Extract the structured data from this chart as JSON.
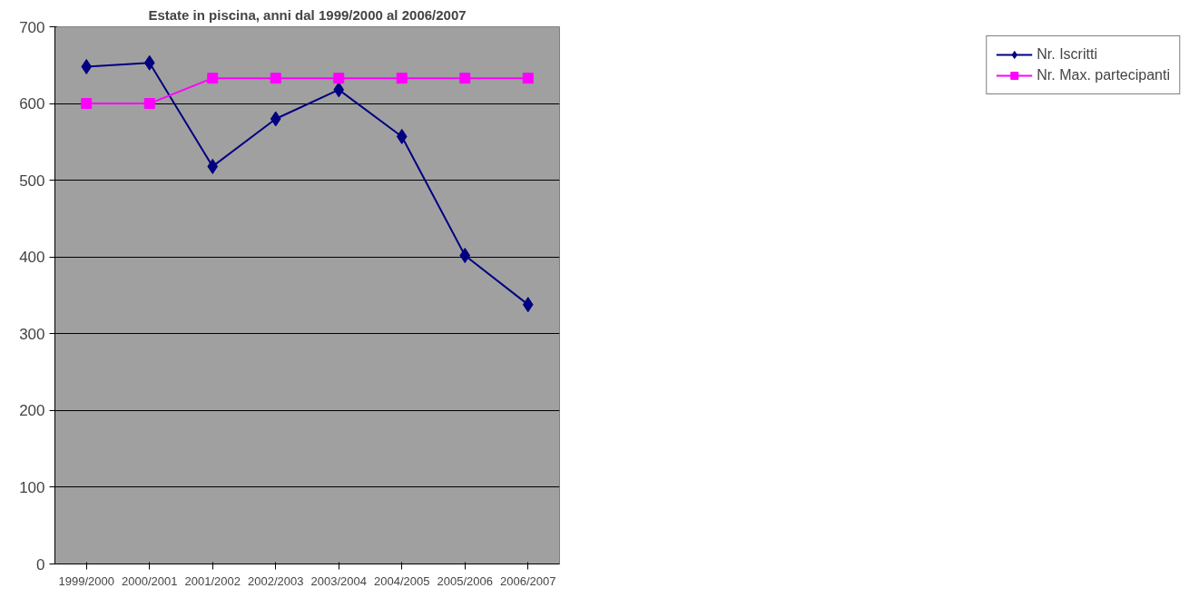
{
  "chart_data": {
    "type": "line",
    "title": "Estate in piscina, anni dal 1999/2000 al 2006/2007",
    "categories": [
      "1999/2000",
      "2000/2001",
      "2001/2002",
      "2002/2003",
      "2003/2004",
      "2004/2005",
      "2005/2006",
      "2006/2007"
    ],
    "series": [
      {
        "name": "Nr. Iscritti",
        "color": "#000080",
        "marker": "diamond",
        "values": [
          648,
          653,
          518,
          580,
          618,
          557,
          402,
          338
        ]
      },
      {
        "name": "Nr. Max. partecipanti",
        "color": "#ff00ff",
        "marker": "square",
        "values": [
          600,
          600,
          633,
          633,
          633,
          633,
          633,
          633
        ]
      }
    ],
    "ylim": [
      0,
      700
    ],
    "yticks": [
      0,
      100,
      200,
      300,
      400,
      500,
      600,
      700
    ],
    "grid": "y",
    "legend": "right"
  }
}
